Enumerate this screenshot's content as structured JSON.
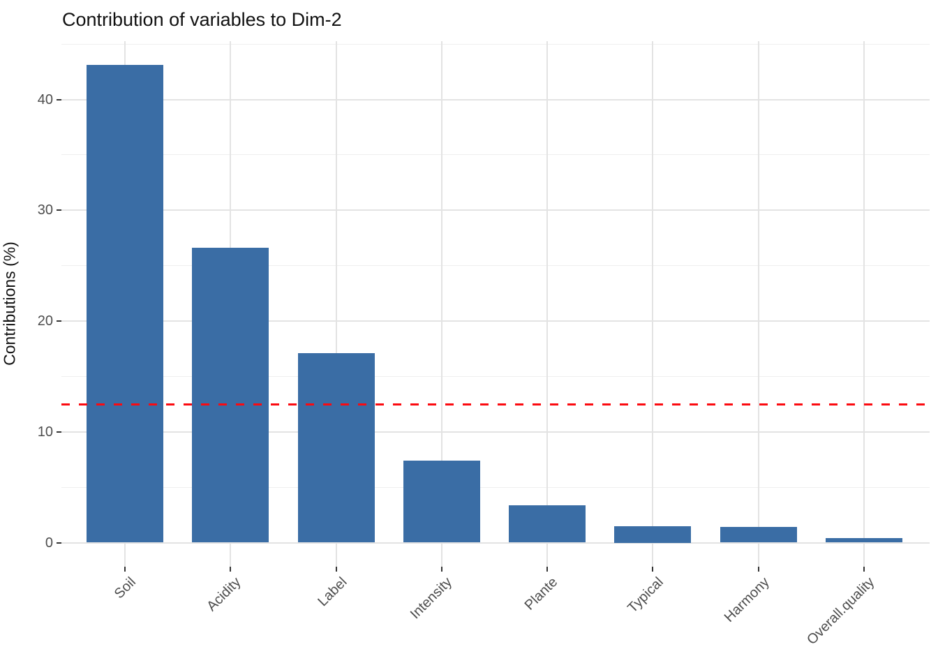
{
  "title": "Contribution of variables to Dim-2",
  "chart_data": {
    "type": "bar",
    "title": "Contribution of variables to Dim-2",
    "xlabel": "",
    "ylabel": "Contributions (%)",
    "categories": [
      "Soil",
      "Acidity",
      "Label",
      "Intensity",
      "Plante",
      "Typical",
      "Harmony",
      "Overall.quality"
    ],
    "values": [
      43.1,
      26.6,
      17.1,
      7.4,
      3.4,
      1.5,
      1.4,
      0.4
    ],
    "ylim": [
      0,
      45.3
    ],
    "yticks": [
      0,
      10,
      20,
      30,
      40
    ],
    "yminor": [
      5,
      15,
      25,
      35,
      45
    ],
    "reference_line": {
      "value": 12.5,
      "color": "#fb0a10",
      "style": "dashed"
    },
    "bar_color": "#3a6da5",
    "grid": true,
    "legend_position": "none",
    "x_label_angle": 45
  },
  "colors": {
    "background": "#ffffff",
    "grid_major": "#e3e3e3",
    "grid_minor": "#efefef",
    "axis_text": "#4d4d4d",
    "tick_mark": "#333333",
    "title_text": "#111111"
  }
}
